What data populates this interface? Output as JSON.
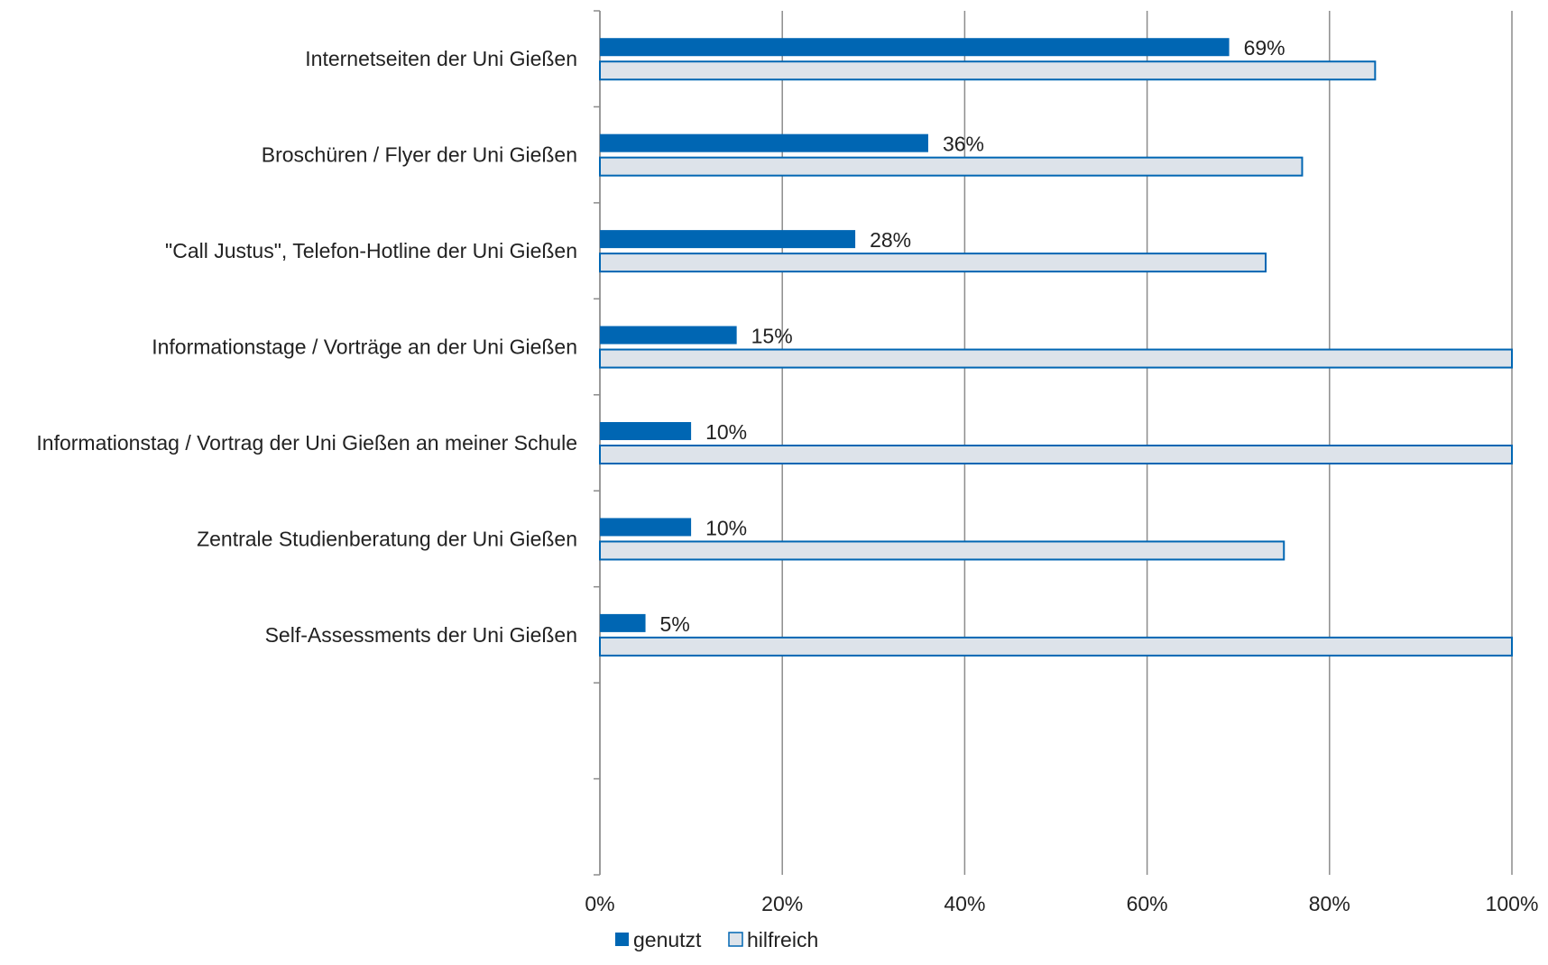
{
  "chart_data": {
    "type": "bar",
    "orientation": "horizontal",
    "title": "",
    "xlabel": "",
    "ylabel": "",
    "xlim": [
      0,
      100
    ],
    "x_ticks": [
      "0%",
      "20%",
      "40%",
      "60%",
      "80%",
      "100%"
    ],
    "grid": "vertical",
    "legend_position": "bottom",
    "categories": [
      "Internetseiten der Uni Gießen",
      "Broschüren / Flyer der Uni Gießen",
      "\"Call Justus\", Telefon-Hotline der Uni Gießen",
      "Informationstage / Vorträge an der Uni Gießen",
      "Informationstag / Vortrag der Uni Gießen an meiner Schule",
      "Zentrale Studienberatung der Uni Gießen",
      "Self-Assessments der Uni Gießen"
    ],
    "series": [
      {
        "name": "genutzt",
        "color": "#0066b3",
        "values": [
          69,
          36,
          28,
          15,
          10,
          10,
          5
        ],
        "data_labels": [
          "69%",
          "36%",
          "28%",
          "15%",
          "10%",
          "10%",
          "5%"
        ]
      },
      {
        "name": "hilfreich",
        "color": "#dde3ea",
        "edge_color": "#0066b3",
        "values": [
          85,
          77,
          73,
          100,
          100,
          75,
          100
        ]
      }
    ]
  }
}
